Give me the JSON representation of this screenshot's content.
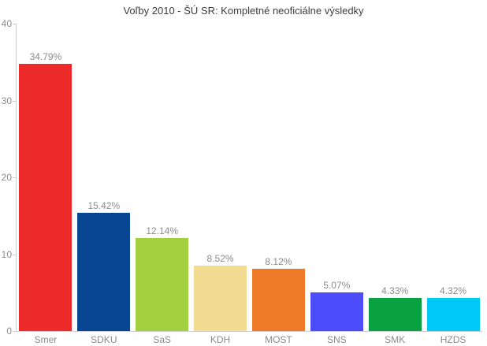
{
  "chart_data": {
    "type": "bar",
    "title": "Voľby 2010 - ŠÚ SR: Kompletné neoficiálne výsledky",
    "categories": [
      "Smer",
      "SDKU",
      "SaS",
      "KDH",
      "MOST",
      "SNS",
      "SMK",
      "HZDS"
    ],
    "values": [
      34.79,
      15.42,
      12.14,
      8.52,
      8.12,
      5.07,
      4.33,
      4.32
    ],
    "value_labels": [
      "34.79%",
      "15.42%",
      "12.14%",
      "8.52%",
      "8.12%",
      "5.07%",
      "4.33%",
      "4.32%"
    ],
    "bar_colors": [
      "#ee2b2b",
      "#084592",
      "#a2d040",
      "#f1dc91",
      "#ee7a27",
      "#4c4cfa",
      "#0aa143",
      "#00c9f7"
    ],
    "xlabel": "",
    "ylabel": "",
    "ylim": [
      0,
      40
    ],
    "yticks": [
      0,
      10,
      20,
      30,
      40
    ],
    "grid": false,
    "legend": "none",
    "colors": {
      "title_text": "#3d3d3d",
      "axis_line": "#cccccc",
      "tick_label_text": "#8b8b8b",
      "value_label_text": "#8b8b8b",
      "category_label_text": "#8b8b8b",
      "background": "#ffffff"
    }
  }
}
